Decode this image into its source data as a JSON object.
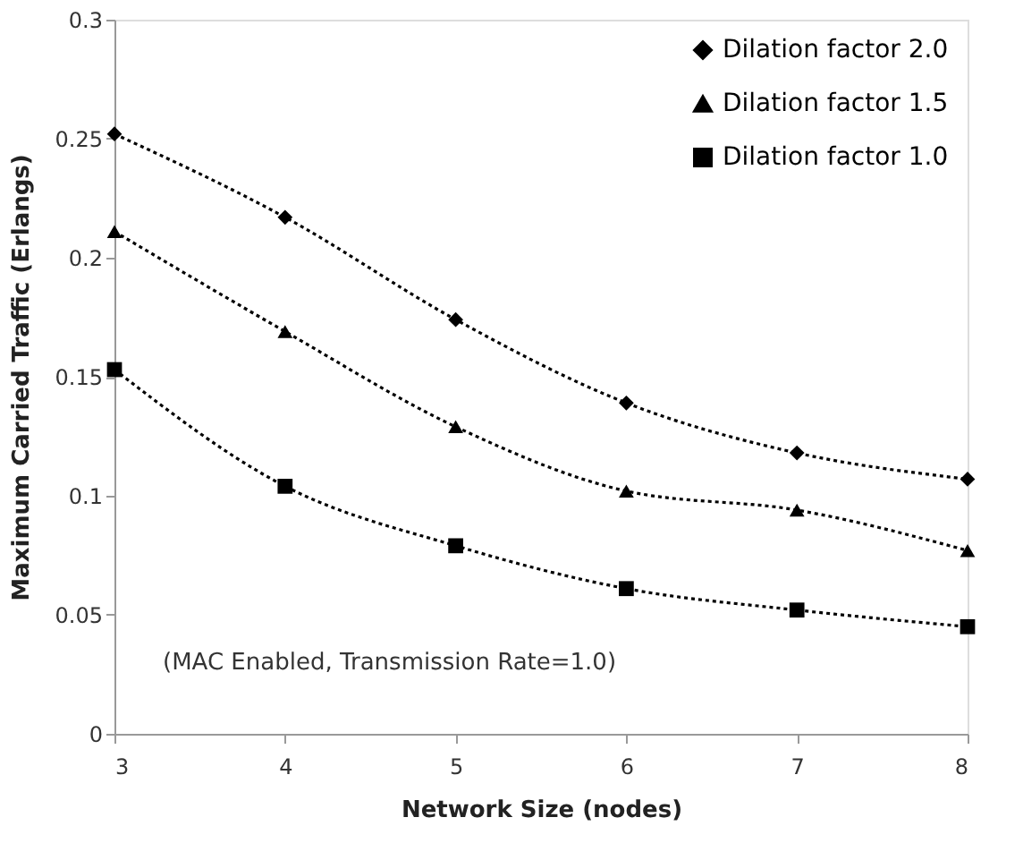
{
  "chart_data": {
    "type": "line",
    "xlabel": "Network Size (nodes)",
    "ylabel": "Maximum Carried Traffic (Erlangs)",
    "x": [
      3,
      4,
      5,
      6,
      7,
      8
    ],
    "series": [
      {
        "name": "Dilation factor 2.0",
        "color": "#000000",
        "marker": "diamond",
        "values": [
          0.252,
          0.217,
          0.174,
          0.139,
          0.118,
          0.107
        ]
      },
      {
        "name": "Dilation factor 1.5",
        "color": "#000000",
        "marker": "triangle",
        "values": [
          0.211,
          0.169,
          0.129,
          0.102,
          0.094,
          0.077
        ]
      },
      {
        "name": "Dilation factor 1.0",
        "color": "#000000",
        "marker": "square",
        "values": [
          0.153,
          0.104,
          0.079,
          0.061,
          0.052,
          0.045
        ]
      }
    ],
    "line_style": "dotted",
    "xlim": [
      3,
      8
    ],
    "xticks": [
      3,
      4,
      5,
      6,
      7,
      8
    ],
    "ylim": [
      0,
      0.3
    ],
    "yticks": [
      0,
      0.05,
      0.1,
      0.15,
      0.2,
      0.25,
      0.3
    ],
    "grid": false,
    "legend": "top right",
    "annotations": [
      "(MAC Enabled, Transmission Rate=1.0)"
    ]
  }
}
